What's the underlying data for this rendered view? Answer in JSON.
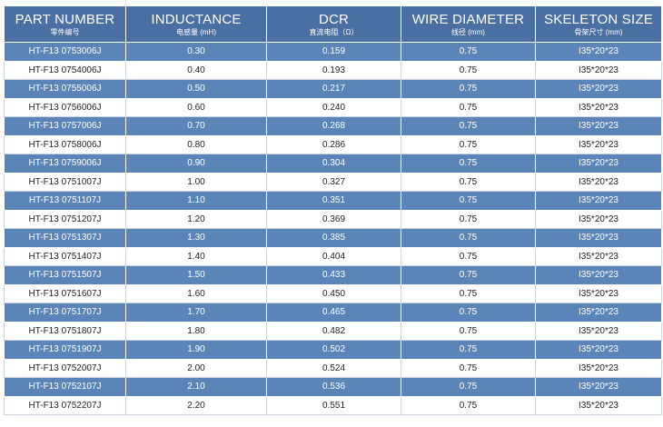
{
  "header": {
    "columns": [
      {
        "title": "PART NUMBER",
        "subtitle": "零件编号"
      },
      {
        "title": "INDUCTANCE",
        "subtitle": "电感量 (mH)"
      },
      {
        "title": "DCR",
        "subtitle": "直流电阻（Ω）"
      },
      {
        "title": "WIRE DIAMETER",
        "subtitle": "线径 (mm)"
      },
      {
        "title": "SKELETON SIZE",
        "subtitle": "骨架尺寸 (mm)"
      }
    ]
  },
  "rows": [
    [
      "HT-F13 0753006J",
      "0.30",
      "0.159",
      "0.75",
      "I35*20*23"
    ],
    [
      "HT-F13 0754006J",
      "0.40",
      "0.193",
      "0.75",
      "I35*20*23"
    ],
    [
      "HT-F13 0755006J",
      "0.50",
      "0.217",
      "0.75",
      "I35*20*23"
    ],
    [
      "HT-F13 0756006J",
      "0.60",
      "0.240",
      "0.75",
      "I35*20*23"
    ],
    [
      "HT-F13 0757006J",
      "0.70",
      "0.268",
      "0.75",
      "I35*20*23"
    ],
    [
      "HT-F13 0758006J",
      "0.80",
      "0.286",
      "0.75",
      "I35*20*23"
    ],
    [
      "HT-F13 0759006J",
      "0.90",
      "0.304",
      "0.75",
      "I35*20*23"
    ],
    [
      "HT-F13 0751007J",
      "1.00",
      "0.327",
      "0.75",
      "I35*20*23"
    ],
    [
      "HT-F13 0751107J",
      "1.10",
      "0.351",
      "0.75",
      "I35*20*23"
    ],
    [
      "HT-F13 0751207J",
      "1.20",
      "0.369",
      "0.75",
      "I35*20*23"
    ],
    [
      "HT-F13 0751307J",
      "1.30",
      "0.385",
      "0.75",
      "I35*20*23"
    ],
    [
      "HT-F13 0751407J",
      "1.40",
      "0.404",
      "0.75",
      "I35*20*23"
    ],
    [
      "HT-F13 0751507J",
      "1.50",
      "0.433",
      "0.75",
      "I35*20*23"
    ],
    [
      "HT-F13 0751607J",
      "1.60",
      "0.450",
      "0.75",
      "I35*20*23"
    ],
    [
      "HT-F13 0751707J",
      "1.70",
      "0.465",
      "0.75",
      "I35*20*23"
    ],
    [
      "HT-F13 0751807J",
      "1.80",
      "0.482",
      "0.75",
      "I35*20*23"
    ],
    [
      "HT-F13 0751907J",
      "1.90",
      "0.502",
      "0.75",
      "I35*20*23"
    ],
    [
      "HT-F13 0752007J",
      "2.00",
      "0.524",
      "0.75",
      "I35*20*23"
    ],
    [
      "HT-F13 0752107J",
      "2.10",
      "0.536",
      "0.75",
      "I35*20*23"
    ],
    [
      "HT-F13 0752207J",
      "2.20",
      "0.551",
      "0.75",
      "I35*20*23"
    ]
  ],
  "colors": {
    "header": "#4a6fa3",
    "striped_row": "#5b84b8",
    "plain_row": "#ffffff"
  }
}
